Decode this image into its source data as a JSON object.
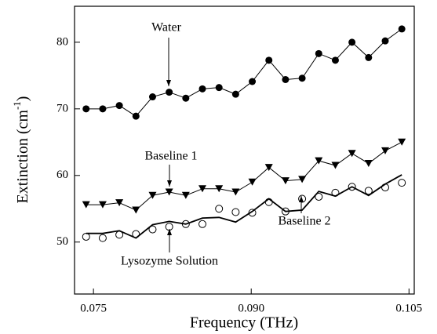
{
  "chart_data": {
    "type": "line",
    "xlabel": "Frequency (THz)",
    "ylabel": [
      "Extinction (cm",
      "-1",
      ")"
    ],
    "x": [
      0.0743,
      0.07588,
      0.07746,
      0.07904,
      0.08062,
      0.0822,
      0.08378,
      0.08536,
      0.08694,
      0.08852,
      0.0901,
      0.09168,
      0.09326,
      0.09484,
      0.09642,
      0.098,
      0.09958,
      0.10116,
      0.10274,
      0.10432
    ],
    "series": [
      {
        "name": "Water",
        "color": "#000000",
        "marker": "circle-filled",
        "line": true,
        "values": [
          70,
          70,
          70.5,
          68.9,
          71.8,
          72.5,
          71.6,
          73,
          73.2,
          72.2,
          74.1,
          77.3,
          74.4,
          74.6,
          78.3,
          77.3,
          80,
          77.7,
          80.2,
          82
        ]
      },
      {
        "name": "Baseline 1",
        "color": "#000000",
        "marker": "triangle-down",
        "line": true,
        "values": [
          55.6,
          55.6,
          55.9,
          54.8,
          57,
          57.5,
          57,
          58,
          58,
          57.5,
          59,
          61.2,
          59.2,
          59.4,
          62.2,
          61.5,
          63.3,
          61.8,
          63.7,
          65
        ]
      },
      {
        "name": "Lysozyme Solution",
        "color": "#000000",
        "marker": "circle-open",
        "line": false,
        "values": [
          50.8,
          50.6,
          51.1,
          51.2,
          51.9,
          52.3,
          52.7,
          52.7,
          55,
          54.5,
          54.4,
          56,
          54.6,
          56.5,
          56.8,
          57.4,
          58.3,
          57.7,
          58.2,
          58.9
        ]
      },
      {
        "name": "Baseline 2",
        "color": "#000000",
        "marker": "none",
        "line": true,
        "values": [
          51.3,
          51.3,
          51.7,
          50.6,
          52.6,
          53.1,
          52.7,
          53.6,
          53.7,
          53,
          54.6,
          56.5,
          54.6,
          54.8,
          57.6,
          56.9,
          58.3,
          57,
          58.7,
          60.1
        ]
      }
    ],
    "xlim": [
      0.0732,
      0.1055
    ],
    "ylim": [
      42.2,
      85.4
    ],
    "xticks": [
      0.075,
      {
        "value": 0.09,
        "label": "0.090"
      },
      0.105
    ],
    "yticks": [
      50,
      60,
      70,
      80
    ],
    "grid": false
  }
}
